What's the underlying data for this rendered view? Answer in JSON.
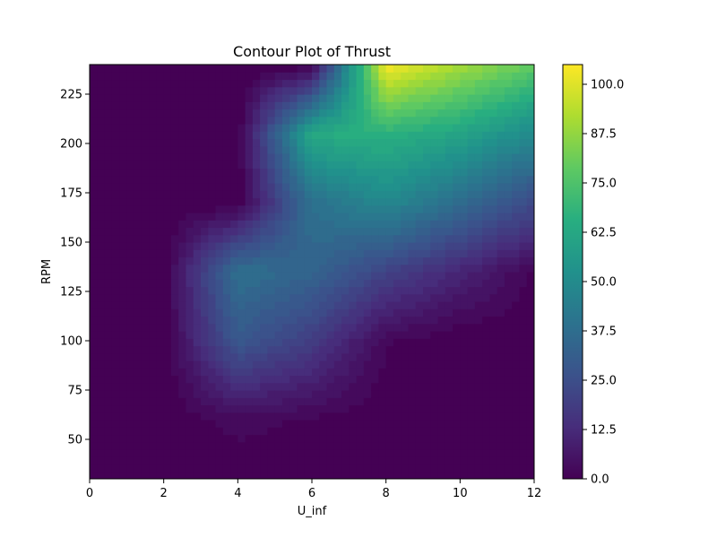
{
  "chart_data": {
    "type": "heatmap",
    "subtype": "filled-contour",
    "title": "Contour Plot of Thrust",
    "xlabel": "U_inf",
    "ylabel": "RPM",
    "xlim": [
      0,
      12
    ],
    "ylim": [
      30,
      240
    ],
    "x_ticks": [
      0,
      2,
      4,
      6,
      8,
      10,
      12
    ],
    "x_tick_labels": [
      "0",
      "2",
      "4",
      "6",
      "8",
      "10",
      "12"
    ],
    "y_ticks": [
      50,
      75,
      100,
      125,
      150,
      175,
      200,
      225
    ],
    "y_tick_labels": [
      "50",
      "75",
      "100",
      "125",
      "150",
      "175",
      "200",
      "225"
    ],
    "colorbar": {
      "range": [
        0,
        105
      ],
      "ticks": [
        0.0,
        12.5,
        25.0,
        37.5,
        50.0,
        62.5,
        75.0,
        87.5,
        100.0
      ],
      "tick_labels": [
        "0.0",
        "12.5",
        "25.0",
        "37.5",
        "50.0",
        "62.5",
        "75.0",
        "87.5",
        "100.0"
      ],
      "colormap": "viridis",
      "placement": "right"
    },
    "grid": false,
    "x": [
      0,
      2,
      4,
      6,
      8,
      10,
      12
    ],
    "y": [
      30,
      60,
      100,
      135,
      170,
      205,
      240
    ],
    "z": [
      [
        0,
        0,
        0,
        0,
        0,
        0,
        0
      ],
      [
        0,
        0,
        4,
        2,
        0,
        0,
        0
      ],
      [
        0,
        0,
        30,
        20,
        3,
        0,
        0
      ],
      [
        0,
        0,
        40,
        35,
        22,
        12,
        2
      ],
      [
        0,
        0,
        0,
        40,
        50,
        38,
        25
      ],
      [
        0,
        0,
        0,
        65,
        68,
        62,
        50
      ],
      [
        0,
        0,
        0,
        0,
        105,
        92,
        80
      ]
    ]
  }
}
